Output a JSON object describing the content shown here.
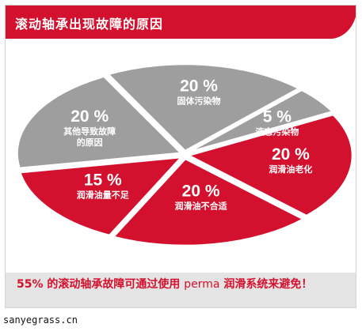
{
  "header": {
    "title": "滚动轴承出现故障的原因"
  },
  "chart_data": {
    "type": "pie",
    "title": "滚动轴承出现故障的原因",
    "unit": "%",
    "slices": [
      {
        "label": "固体污染物",
        "value": 20,
        "display": "20 %",
        "color": "#9e9e9e"
      },
      {
        "label": "液态污染物",
        "value": 5,
        "display": "5 %",
        "color": "#9e9e9e"
      },
      {
        "label": "润滑油老化",
        "value": 20,
        "display": "20 %",
        "color": "#d3102d"
      },
      {
        "label": "润滑油不合适",
        "value": 20,
        "display": "20 %",
        "color": "#d3102d"
      },
      {
        "label": "润滑油量不足",
        "value": 15,
        "display": "15 %",
        "color": "#d3102d"
      },
      {
        "label": "其他导致故障的原因",
        "label_lines": [
          "其他导致故障",
          "的原因"
        ],
        "value": 20,
        "display": "20 %",
        "color": "#9e9e9e"
      }
    ]
  },
  "caption": {
    "percent": "55%",
    "text_before": " 的滚动轴承故障可通过使用 ",
    "brand": "perma",
    "text_after": " 润滑系统来避免！"
  },
  "watermark": "sanyegrass.cn",
  "colors": {
    "accent": "#d3102d",
    "slice_gray": "#9e9e9e",
    "caption_bg": "#e4e4e4"
  }
}
